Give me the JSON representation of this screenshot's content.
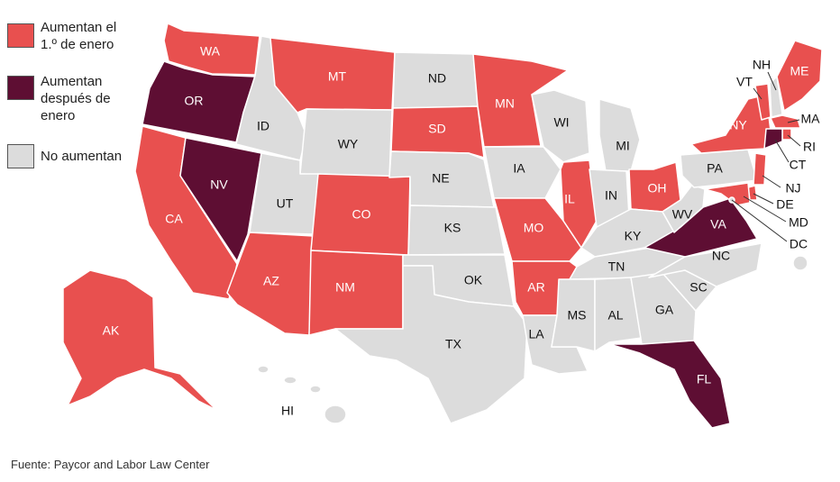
{
  "legend": {
    "items": [
      {
        "label": "Aumentan el 1.º de enero",
        "color": "#E8504F"
      },
      {
        "label": "Aumentan después de enero",
        "color": "#5E0E33"
      },
      {
        "label": "No aumentan",
        "color": "#DCDCDC"
      }
    ]
  },
  "source": "Fuente: Paycor and Labor Law Center",
  "states": {
    "WA": {
      "label": "WA",
      "category": "january"
    },
    "OR": {
      "label": "OR",
      "category": "later"
    },
    "CA": {
      "label": "CA",
      "category": "january"
    },
    "NV": {
      "label": "NV",
      "category": "later"
    },
    "ID": {
      "label": "ID",
      "category": "none"
    },
    "MT": {
      "label": "MT",
      "category": "january"
    },
    "WY": {
      "label": "WY",
      "category": "none"
    },
    "UT": {
      "label": "UT",
      "category": "none"
    },
    "AZ": {
      "label": "AZ",
      "category": "january"
    },
    "CO": {
      "label": "CO",
      "category": "january"
    },
    "NM": {
      "label": "NM",
      "category": "january"
    },
    "ND": {
      "label": "ND",
      "category": "none"
    },
    "SD": {
      "label": "SD",
      "category": "january"
    },
    "NE": {
      "label": "NE",
      "category": "none"
    },
    "KS": {
      "label": "KS",
      "category": "none"
    },
    "OK": {
      "label": "OK",
      "category": "none"
    },
    "TX": {
      "label": "TX",
      "category": "none"
    },
    "MN": {
      "label": "MN",
      "category": "january"
    },
    "IA": {
      "label": "IA",
      "category": "none"
    },
    "MO": {
      "label": "MO",
      "category": "january"
    },
    "AR": {
      "label": "AR",
      "category": "january"
    },
    "LA": {
      "label": "LA",
      "category": "none"
    },
    "WI": {
      "label": "WI",
      "category": "none"
    },
    "IL": {
      "label": "IL",
      "category": "january"
    },
    "MI": {
      "label": "MI",
      "category": "none"
    },
    "IN": {
      "label": "IN",
      "category": "none"
    },
    "OH": {
      "label": "OH",
      "category": "january"
    },
    "KY": {
      "label": "KY",
      "category": "none"
    },
    "TN": {
      "label": "TN",
      "category": "none"
    },
    "MS": {
      "label": "MS",
      "category": "none"
    },
    "AL": {
      "label": "AL",
      "category": "none"
    },
    "GA": {
      "label": "GA",
      "category": "none"
    },
    "FL": {
      "label": "FL",
      "category": "later"
    },
    "SC": {
      "label": "SC",
      "category": "none"
    },
    "NC": {
      "label": "NC",
      "category": "none"
    },
    "VA": {
      "label": "VA",
      "category": "later"
    },
    "WV": {
      "label": "WV",
      "category": "none"
    },
    "PA": {
      "label": "PA",
      "category": "none"
    },
    "NY": {
      "label": "NY",
      "category": "january"
    },
    "VT": {
      "label": "VT",
      "category": "january"
    },
    "NH": {
      "label": "NH",
      "category": "none"
    },
    "ME": {
      "label": "ME",
      "category": "january"
    },
    "MA": {
      "label": "MA",
      "category": "january"
    },
    "RI": {
      "label": "RI",
      "category": "january"
    },
    "CT": {
      "label": "CT",
      "category": "later"
    },
    "NJ": {
      "label": "NJ",
      "category": "january"
    },
    "DE": {
      "label": "DE",
      "category": "january"
    },
    "MD": {
      "label": "MD",
      "category": "january"
    },
    "DC": {
      "label": "DC",
      "category": "none"
    },
    "AK": {
      "label": "AK",
      "category": "january"
    },
    "HI": {
      "label": "HI",
      "category": "none"
    }
  },
  "colors": {
    "january": "#E8504F",
    "later": "#5E0E33",
    "none": "#DCDCDC",
    "border": "#ffffff",
    "label_light": "#ffffff",
    "label_dark": "#111111"
  }
}
